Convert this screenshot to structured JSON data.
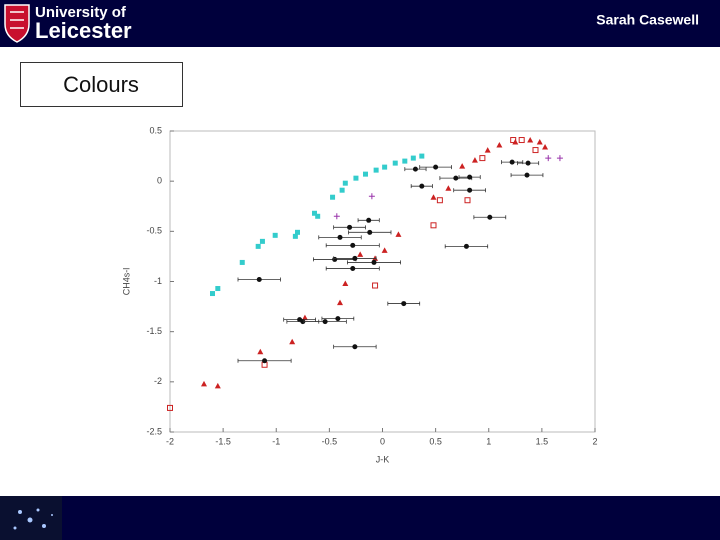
{
  "header": {
    "logo_line1": "University of",
    "logo_line2": "Leicester",
    "author": "Sarah Casewell"
  },
  "slide": {
    "title": "Colours"
  },
  "chart_data": {
    "type": "scatter",
    "xlabel": "J-K",
    "ylabel": "CH4s-l",
    "xlim": [
      -2,
      2
    ],
    "ylim": [
      -2.5,
      0.5
    ],
    "xticks": [
      -2,
      -1.5,
      -1,
      -0.5,
      0,
      0.5,
      1,
      1.5,
      2
    ],
    "yticks": [
      0.5,
      0,
      -0.5,
      -1,
      -1.5,
      -2,
      -2.5
    ],
    "series": [
      {
        "marker": "square",
        "color": "#33cccc",
        "x": [
          -1.6,
          -1.55,
          -1.32,
          -1.17,
          -1.13,
          -1.01,
          -0.82,
          -0.8,
          -0.64,
          -0.61,
          -0.47,
          -0.38,
          -0.35,
          -0.25,
          -0.16,
          -0.06,
          0.02,
          0.12,
          0.21,
          0.29,
          0.37
        ],
        "y": [
          -1.12,
          -1.07,
          -0.81,
          -0.65,
          -0.6,
          -0.54,
          -0.55,
          -0.51,
          -0.32,
          -0.35,
          -0.16,
          -0.09,
          -0.02,
          0.03,
          0.07,
          0.11,
          0.14,
          0.18,
          0.2,
          0.23,
          0.25
        ]
      },
      {
        "marker": "triangle",
        "color": "#cc2222",
        "x": [
          -1.68,
          -1.55,
          -1.15,
          -0.85,
          -0.73,
          -0.4,
          -0.35,
          -0.21,
          -0.07,
          0.02,
          0.15,
          0.48,
          0.62,
          0.75,
          0.87,
          0.99,
          1.1,
          1.25,
          1.39,
          1.48,
          1.53
        ],
        "y": [
          -2.02,
          -2.04,
          -1.7,
          -1.6,
          -1.36,
          -1.21,
          -1.02,
          -0.73,
          -0.77,
          -0.69,
          -0.53,
          -0.16,
          -0.07,
          0.15,
          0.21,
          0.31,
          0.36,
          0.39,
          0.41,
          0.39,
          0.34
        ]
      },
      {
        "marker": "open-square",
        "color": "#cc2222",
        "x": [
          -2,
          -1.11,
          -0.07,
          0.48,
          0.54,
          0.8,
          0.94,
          1.23,
          1.31,
          1.44
        ],
        "y": [
          -2.26,
          -1.83,
          -1.04,
          -0.44,
          -0.19,
          -0.19,
          0.23,
          0.41,
          0.41,
          0.31
        ]
      },
      {
        "marker": "circle",
        "color": "#111111",
        "x": [
          -1.16,
          -1.11,
          -0.78,
          -0.75,
          -0.54,
          -0.42,
          -0.26,
          0.2,
          -0.31,
          -0.4,
          -0.13,
          -0.12,
          -0.28,
          -0.45,
          -0.26,
          -0.28,
          -0.08,
          0.31,
          0.37,
          0.5,
          0.69,
          0.82,
          0.82,
          1.01,
          0.79,
          1.22,
          1.37,
          1.36
        ],
        "y": [
          -0.98,
          -1.79,
          -1.38,
          -1.4,
          -1.4,
          -1.37,
          -1.65,
          -1.22,
          -0.46,
          -0.56,
          -0.39,
          -0.51,
          -0.64,
          -0.78,
          -0.77,
          -0.87,
          -0.81,
          0.12,
          -0.05,
          0.14,
          0.03,
          0.04,
          -0.09,
          -0.36,
          -0.65,
          0.19,
          0.18,
          0.06
        ],
        "xerr": [
          0.2,
          0.25,
          0.15,
          0.15,
          0.2,
          0.15,
          0.2,
          0.15,
          0.15,
          0.2,
          0.1,
          0.2,
          0.25,
          0.2,
          0.2,
          0.25,
          0.25,
          0.1,
          0.1,
          0.15,
          0.15,
          0.1,
          0.15,
          0.15,
          0.2,
          0.1,
          0.1,
          0.15
        ]
      },
      {
        "marker": "plus",
        "color": "#9933aa",
        "x": [
          -0.43,
          -0.1,
          1.67,
          1.56
        ],
        "y": [
          -0.35,
          -0.15,
          0.23,
          0.23
        ]
      }
    ]
  }
}
